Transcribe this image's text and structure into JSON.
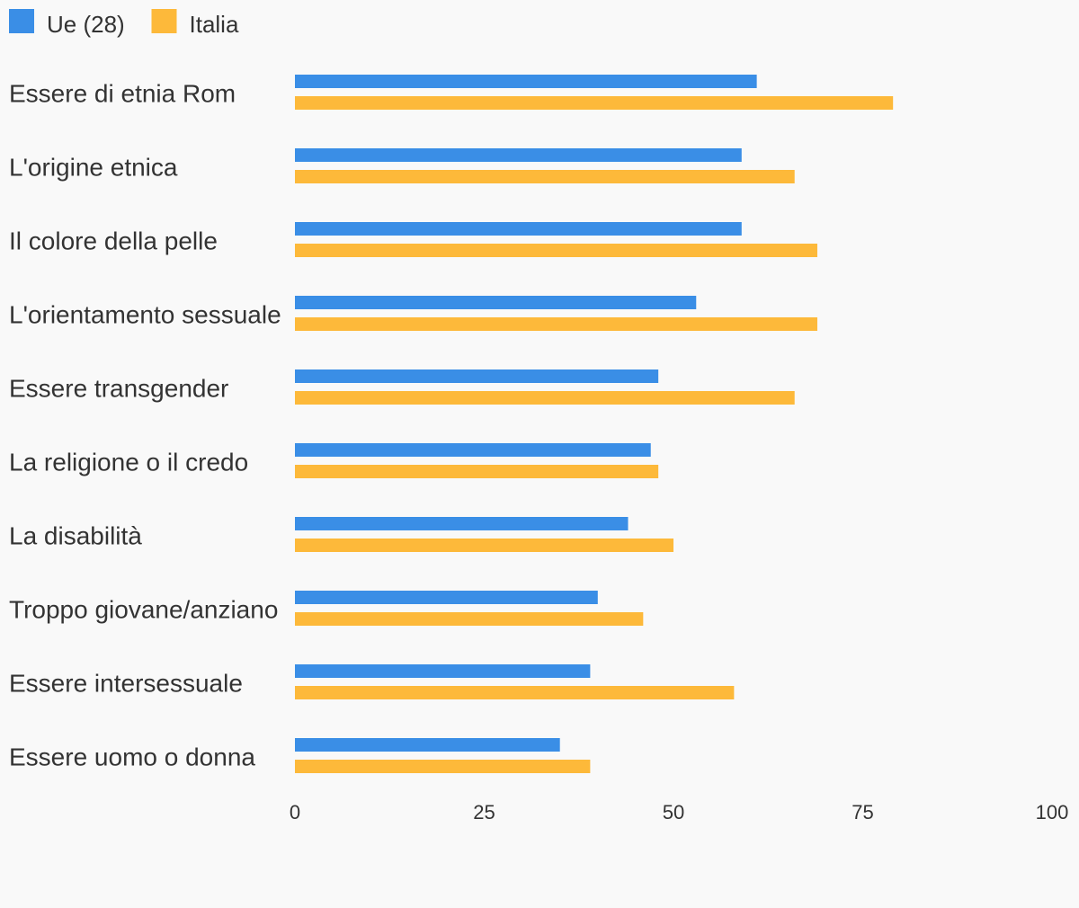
{
  "chart_data": {
    "type": "bar",
    "orientation": "horizontal",
    "categories": [
      "Essere di etnia Rom",
      "L'origine etnica",
      "Il colore della pelle",
      "L'orientamento sessuale",
      "Essere transgender",
      "La religione o il credo",
      "La disabilità",
      "Troppo giovane/anziano",
      "Essere intersessuale",
      "Essere uomo o donna"
    ],
    "series": [
      {
        "name": "Ue (28)",
        "color": "#3a8ee6",
        "values": [
          61,
          59,
          59,
          53,
          48,
          47,
          44,
          40,
          39,
          35
        ]
      },
      {
        "name": "Italia",
        "color": "#fdb93a",
        "values": [
          79,
          66,
          69,
          69,
          66,
          48,
          50,
          46,
          58,
          39
        ]
      }
    ],
    "xlim": [
      0,
      100
    ],
    "xticks": [
      0,
      25,
      50,
      75,
      100
    ],
    "legend_position": "top-left",
    "grid": false,
    "title": "",
    "xlabel": "",
    "ylabel": ""
  }
}
